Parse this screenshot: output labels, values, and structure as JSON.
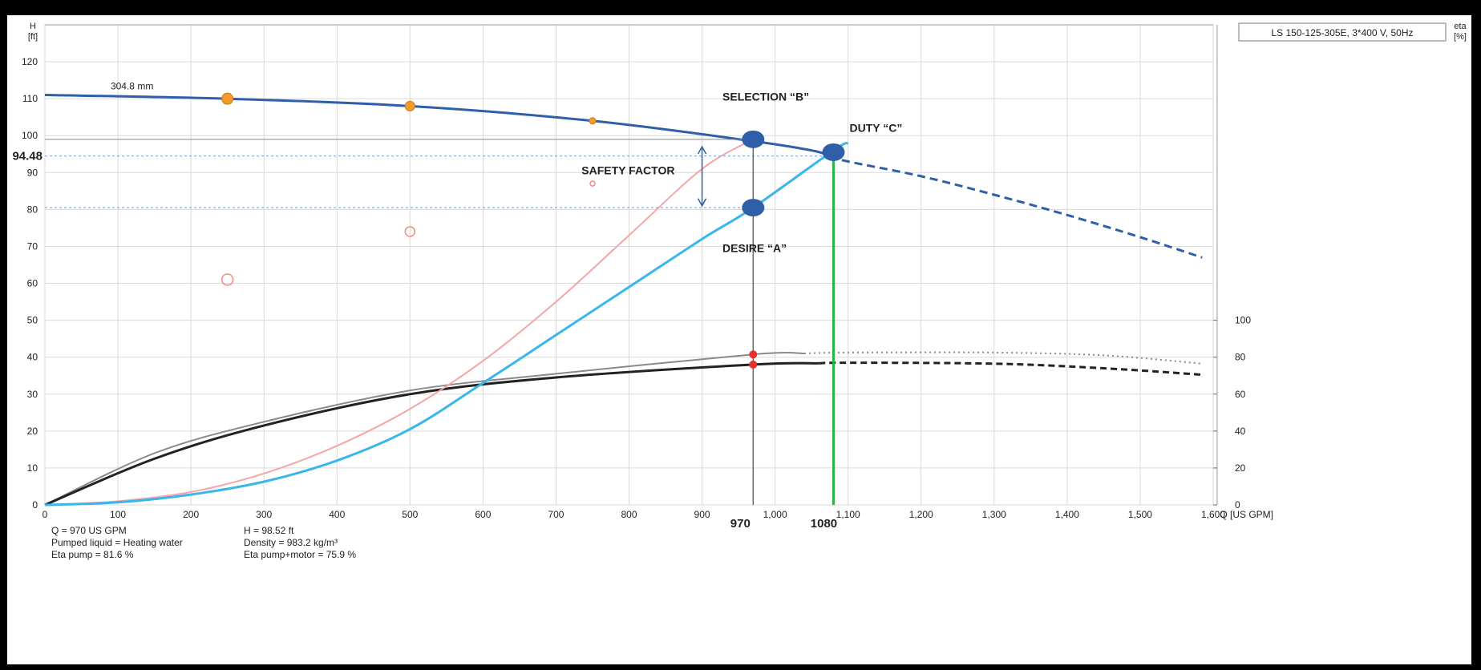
{
  "chart_data": {
    "type": "line",
    "title": "LS 150-125-305E, 3*400 V, 50Hz",
    "impeller_label": "304.8 mm",
    "x_axis": {
      "label": "Q [US GPM]",
      "range": [
        0,
        1600
      ],
      "ticks": [
        0,
        100,
        200,
        300,
        400,
        500,
        600,
        700,
        800,
        900,
        1000,
        1100,
        1200,
        1300,
        1400,
        1500,
        1600
      ],
      "tick_labels": [
        "0",
        "100",
        "200",
        "300",
        "400",
        "500",
        "600",
        "700",
        "800",
        "900",
        "1,000",
        "1,100",
        "1,200",
        "1,300",
        "1,400",
        "1,500",
        "1,600"
      ]
    },
    "y_left": {
      "label_line1": "H",
      "label_line2": "[ft]",
      "range": [
        0,
        130
      ],
      "ticks": [
        0,
        10,
        20,
        30,
        40,
        50,
        60,
        70,
        80,
        90,
        100,
        110,
        120
      ]
    },
    "y_right": {
      "label_line1": "eta",
      "label_line2": "[%]",
      "range": [
        0,
        260
      ],
      "ticks": [
        0,
        20,
        40,
        60,
        80,
        100
      ]
    },
    "grid": true,
    "series": [
      {
        "key": "pump_curve",
        "color": "#2e5fa8",
        "values": [
          [
            0,
            111
          ],
          [
            250,
            110
          ],
          [
            500,
            108
          ],
          [
            750,
            104
          ],
          [
            970,
            98.5
          ],
          [
            1050,
            96
          ],
          [
            1100,
            93
          ],
          [
            1200,
            89
          ],
          [
            1300,
            84
          ],
          [
            1400,
            78.5
          ],
          [
            1500,
            72.5
          ],
          [
            1585,
            67
          ]
        ],
        "dashed_from": 1075
      },
      {
        "key": "system_curve_design",
        "color": "#f4a6a6",
        "values": [
          [
            0,
            0
          ],
          [
            100,
            1
          ],
          [
            200,
            3.5
          ],
          [
            300,
            8.5
          ],
          [
            400,
            16
          ],
          [
            500,
            26
          ],
          [
            600,
            39
          ],
          [
            700,
            55
          ],
          [
            800,
            73
          ],
          [
            900,
            91
          ],
          [
            970,
            99
          ]
        ]
      },
      {
        "key": "system_curve_actual",
        "color": "#3ab6ea",
        "values": [
          [
            0,
            0
          ],
          [
            100,
            0.7
          ],
          [
            200,
            2.8
          ],
          [
            300,
            6.3
          ],
          [
            400,
            12
          ],
          [
            500,
            20.5
          ],
          [
            600,
            33
          ],
          [
            700,
            46
          ],
          [
            800,
            59
          ],
          [
            900,
            72
          ],
          [
            970,
            80.5
          ],
          [
            1080,
            96
          ],
          [
            1100,
            98
          ]
        ]
      },
      {
        "key": "efficiency_pump",
        "color": "#8a8a8a",
        "values": [
          [
            0,
            0
          ],
          [
            150,
            28
          ],
          [
            300,
            45
          ],
          [
            500,
            62
          ],
          [
            700,
            71
          ],
          [
            970,
            81.5
          ],
          [
            1100,
            82.5
          ],
          [
            1300,
            82.5
          ],
          [
            1450,
            81
          ],
          [
            1585,
            76.5
          ]
        ],
        "axis": "right",
        "dotted_from": 1040
      },
      {
        "key": "efficiency_pump_motor",
        "color": "#222222",
        "values": [
          [
            0,
            0
          ],
          [
            150,
            25
          ],
          [
            300,
            43
          ],
          [
            500,
            60
          ],
          [
            700,
            69
          ],
          [
            970,
            76
          ],
          [
            1100,
            77
          ],
          [
            1300,
            76.5
          ],
          [
            1450,
            74
          ],
          [
            1585,
            70.5
          ]
        ],
        "axis": "right",
        "dashed_from": 1060
      }
    ],
    "reference_points": {
      "pump_curve_markers": [
        [
          250,
          110
        ],
        [
          500,
          108
        ],
        [
          750,
          104
        ]
      ],
      "hollow_markers": [
        [
          250,
          61
        ],
        [
          500,
          74
        ],
        [
          750,
          87
        ]
      ]
    },
    "annotations": {
      "selection_b": {
        "label": "SELECTION “B”",
        "x": 970,
        "y": 99
      },
      "desire_a": {
        "label": "DESIRE “A”",
        "x": 970,
        "y": 80.5
      },
      "duty_c": {
        "label": "DUTY “C”",
        "x": 1080,
        "y": 95.5
      },
      "safety_factor": {
        "label": "SAFETY FACTOR"
      },
      "h_marker": "94.48",
      "q_selection": "970",
      "q_duty": "1080",
      "eta_points": [
        81.5,
        76
      ]
    },
    "info": {
      "col1": [
        "Q = 970 US GPM",
        "Pumped liquid = Heating water",
        "Eta pump = 81.6 %"
      ],
      "col2": [
        "H = 98.52 ft",
        "Density = 983.2 kg/m³",
        "Eta pump+motor = 75.9 %"
      ]
    },
    "colors": {
      "pump": "#2e5fa8",
      "system_design": "#f4a6a6",
      "system_actual": "#3ab6ea",
      "duty_line": "#2db34a",
      "reference_line": "#7fa2d8",
      "efficiency_point": "#e83030",
      "marker": "#f39c2b"
    }
  }
}
